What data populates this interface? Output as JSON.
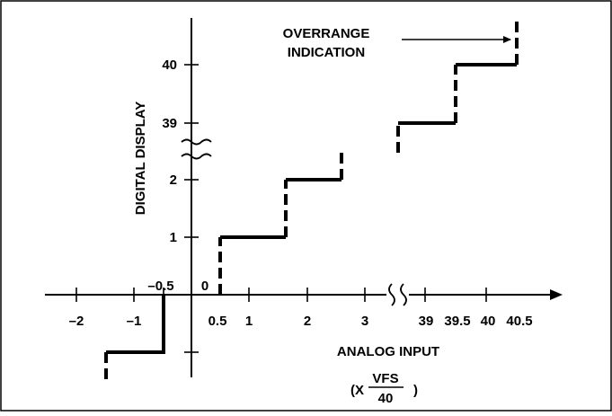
{
  "y_axis_label": "DIGITAL DISPLAY",
  "x_axis_label": "ANALOG INPUT",
  "x_unit": {
    "prefix": "(X",
    "numerator": "VFS",
    "denominator": "40",
    "suffix": ")"
  },
  "annotation": {
    "line1": "OVERRANGE",
    "line2": "INDICATION"
  },
  "y_ticks": [
    "40",
    "39",
    "2",
    "1"
  ],
  "x_ticks_left": [
    "–2",
    "–1",
    "0.5",
    "1",
    "2",
    "3"
  ],
  "x_ticks_right": [
    "39",
    "39.5",
    "40",
    "40.5"
  ],
  "origin_labels": {
    "negative_half": "–0.5",
    "zero": "0"
  },
  "colors": {
    "line": "#000000",
    "background": "#ffffff",
    "border": "#000000"
  }
}
